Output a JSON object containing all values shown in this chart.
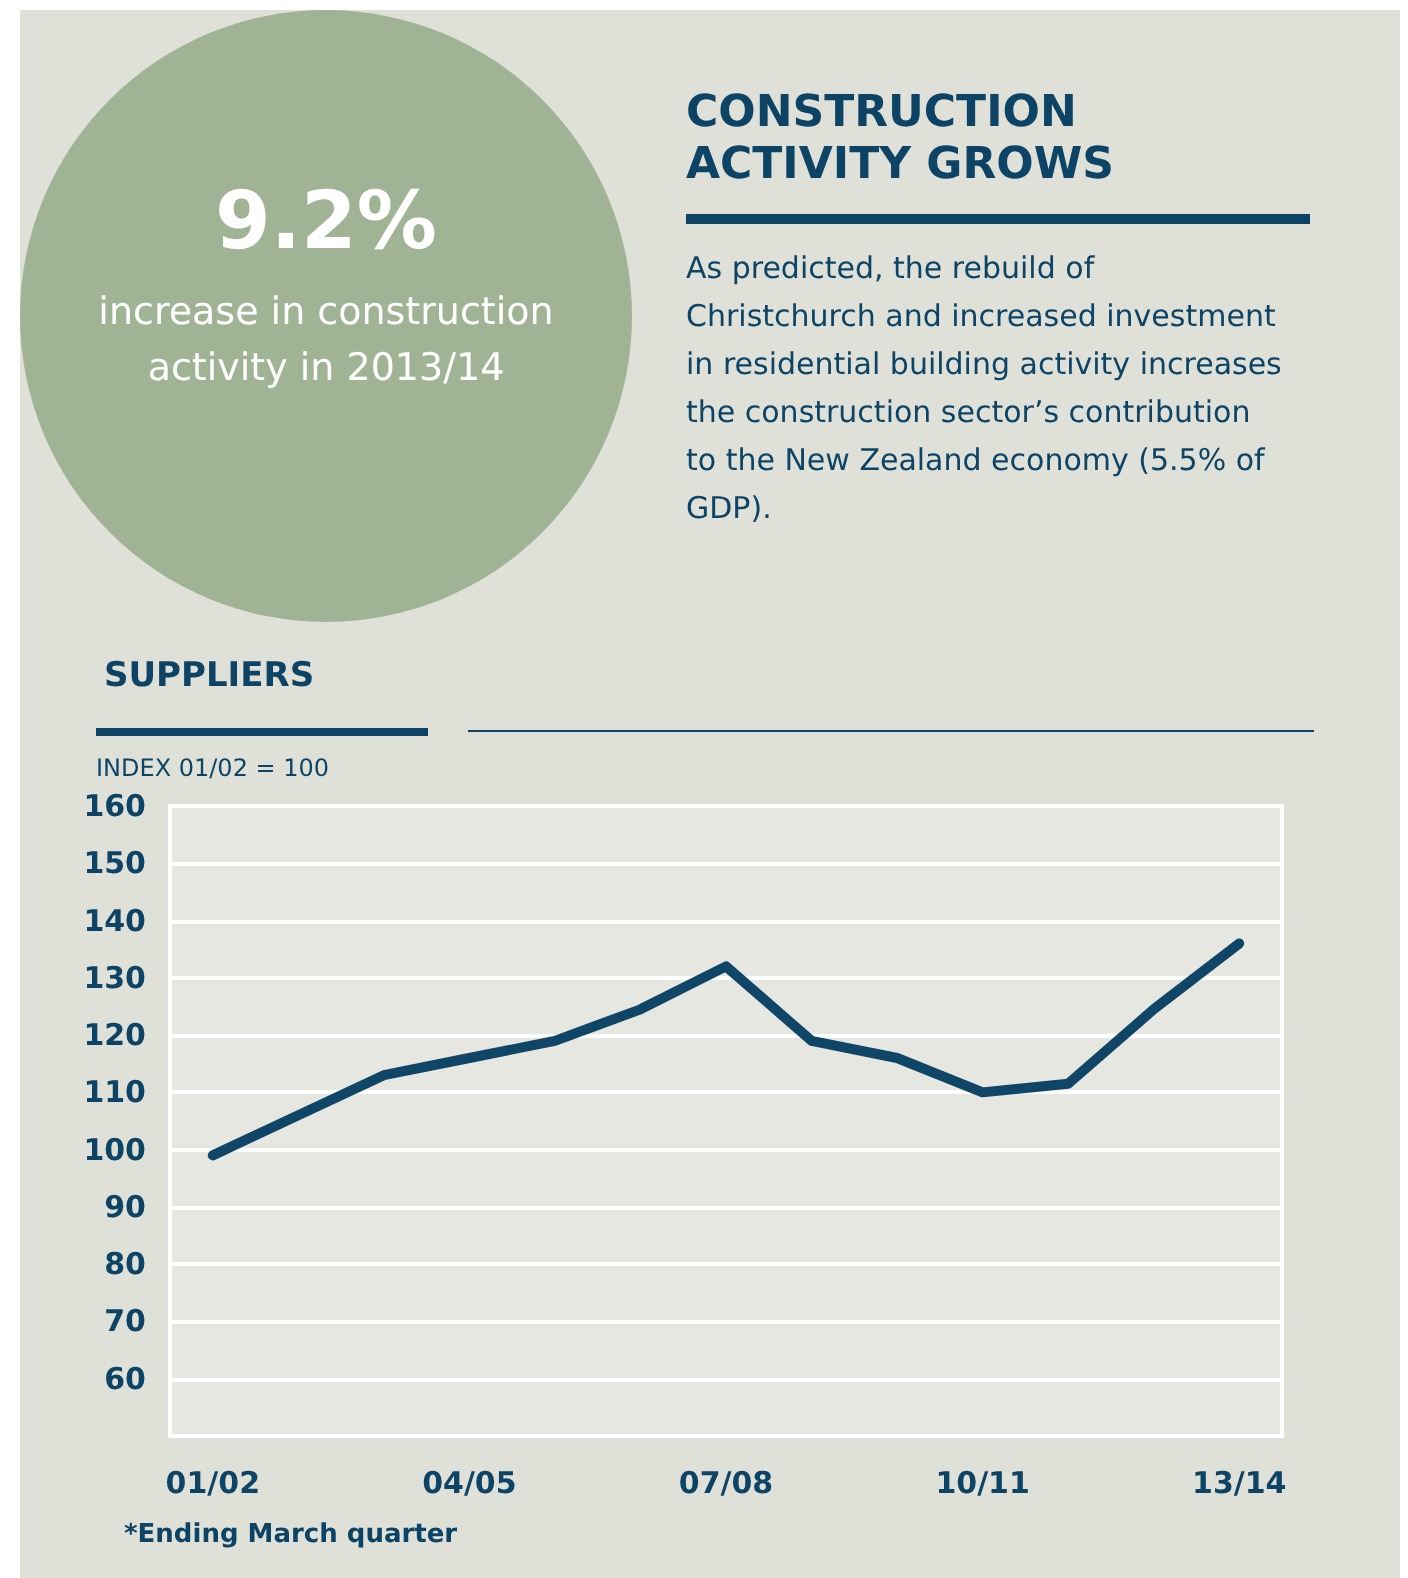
{
  "chart_data": {
    "type": "line",
    "title": "CONSTRUCTION ACTIVITY GROWS",
    "subtitle": "As predicted, the rebuild of Christchurch and increased investment in residential building activity increases the construction sector’s contribution to the New Zealand economy (5.5% of GDP).",
    "annotations": [
      "9.2%",
      "increase in construction activity in 2013/14",
      "SUPPLIERS",
      "*Ending March quarter"
    ],
    "ylabel": "INDEX 01/02 = 100",
    "categories": [
      "01/02",
      null,
      null,
      "04/05",
      null,
      null,
      "07/08",
      null,
      null,
      "10/11",
      null,
      null,
      "13/14"
    ],
    "series": [
      {
        "color": "#0f4566",
        "values": [
          99,
          106,
          113,
          116,
          119,
          124.5,
          132,
          119,
          116,
          110,
          111.5,
          124.5,
          136
        ]
      }
    ],
    "ylim": [
      50,
      160
    ],
    "yticks": [
      60,
      70,
      80,
      90,
      100,
      110,
      120,
      130,
      140,
      150,
      160
    ],
    "grid": "y",
    "marker": "none",
    "line_style": "solid"
  }
}
